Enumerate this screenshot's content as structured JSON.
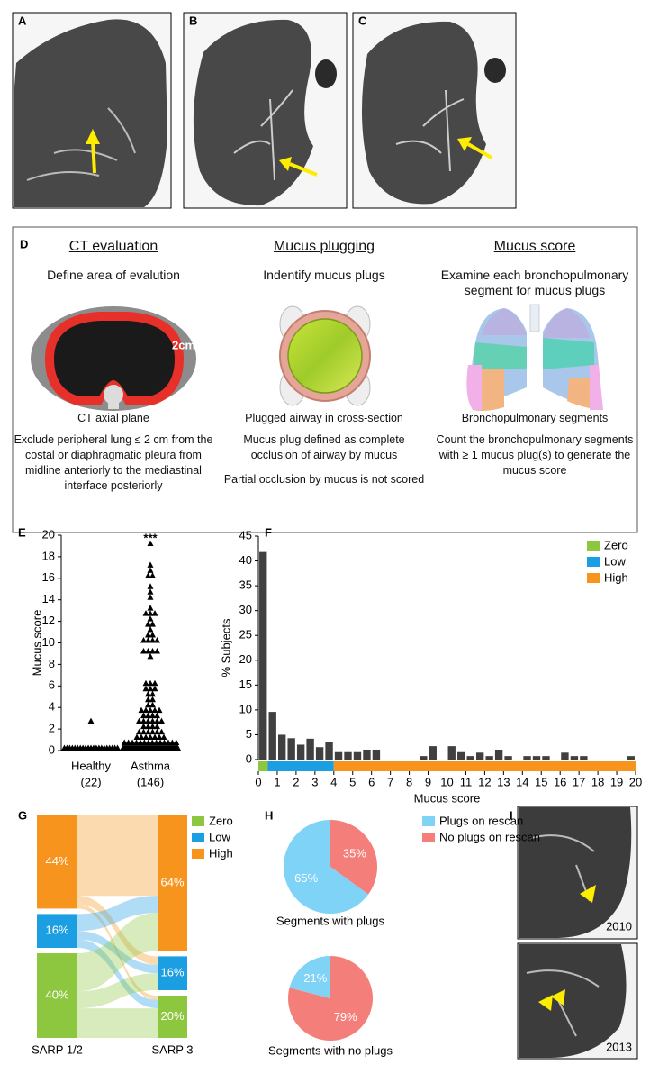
{
  "panel_labels": [
    "A",
    "B",
    "C",
    "D",
    "E",
    "F",
    "G",
    "H",
    "I"
  ],
  "evaluation": {
    "columns": [
      {
        "title": "CT evaluation",
        "subtitle": "Define area of evalution",
        "figure_text": "2cm",
        "caption": "CT axial plane",
        "notes": [
          "Exclude peripheral lung ≤ 2 cm from the costal or diaphragmatic pleura from midline anteriorly to the mediastinal interface posteriorly"
        ]
      },
      {
        "title": "Mucus plugging",
        "subtitle": "Indentify mucus plugs",
        "caption": "Plugged airway in cross-section",
        "notes": [
          "Mucus plug defined as complete occlusion of airway by mucus",
          "Partial occlusion by mucus is not scored"
        ]
      },
      {
        "title": "Mucus score",
        "subtitle": "Examine each bronchopulmonary segment for mucus plugs",
        "caption": "Bronchopulmonary segments",
        "notes": [
          "Count the bronchopulmonary segments with ≥ 1 mucus plug(s) to generate the mucus score"
        ]
      }
    ]
  },
  "follow_up_images": {
    "years": [
      "2010",
      "2013"
    ]
  },
  "chart_data": [
    {
      "type": "scatter",
      "ylabel": "Mucus score",
      "categories": [
        "Healthy",
        "Asthma"
      ],
      "group_sizes": [
        "(22)",
        "(146)"
      ],
      "marker": "triangle",
      "color": "#000000",
      "annotation": "***",
      "annotation_series": 1,
      "ylim": [
        0,
        20
      ],
      "yticks": [
        0,
        2,
        4,
        6,
        8,
        10,
        12,
        14,
        16,
        18,
        20
      ],
      "series": [
        {
          "values": [
            0,
            0,
            0,
            0,
            0,
            0,
            0,
            0,
            0,
            0,
            0,
            0,
            0,
            0,
            0,
            0,
            0,
            0,
            0,
            0,
            0,
            2.5
          ]
        },
        {
          "values": [
            0,
            0,
            0,
            0,
            0,
            0,
            0,
            0,
            0,
            0,
            0,
            0,
            0,
            0,
            0,
            0,
            0,
            0,
            0,
            0,
            0,
            0,
            0,
            0,
            0,
            0,
            0,
            0,
            0,
            0,
            0,
            0,
            0,
            0,
            0,
            0,
            0,
            0,
            0,
            0,
            0,
            0,
            0,
            0,
            0,
            0,
            0,
            0,
            0,
            0,
            0,
            0,
            0,
            0,
            0,
            0,
            0,
            0,
            0,
            0,
            0,
            0.5,
            0.5,
            0.5,
            0.5,
            0.5,
            0.5,
            0.5,
            0.5,
            0.5,
            0.5,
            0.5,
            0.5,
            0.5,
            0.5,
            1,
            1,
            1,
            1,
            1,
            1,
            1,
            1.5,
            1.5,
            1.5,
            1.5,
            1.5,
            1.5,
            2,
            2,
            2,
            2,
            2.5,
            2.5,
            2.5,
            2.5,
            2.5,
            2.5,
            3,
            3,
            3,
            3,
            3.5,
            3.5,
            3.5,
            3.5,
            3.5,
            4,
            4,
            4.5,
            4.5,
            5,
            5,
            5.5,
            5.5,
            5.5,
            6,
            6,
            6,
            8.5,
            9,
            9,
            9,
            9,
            10,
            10,
            10,
            10,
            10.5,
            10.5,
            11,
            11.5,
            11.5,
            12,
            12.5,
            12.5,
            12.5,
            13,
            14,
            14.5,
            15,
            16,
            16,
            16.5,
            17,
            19
          ]
        }
      ]
    },
    {
      "type": "histogram",
      "ylabel": "% Subjects",
      "xlabel": "Mucus score",
      "color": "#404040",
      "bins": [
        0,
        0.5,
        1,
        1.5,
        2,
        2.5,
        3,
        3.5,
        4,
        4.5,
        5,
        5.5,
        6,
        6.5,
        7,
        7.5,
        8,
        8.5,
        9,
        9.5,
        10,
        10.5,
        11,
        11.5,
        12,
        12.5,
        13,
        13.5,
        14,
        14.5,
        15,
        15.5,
        16,
        16.5,
        17,
        17.5,
        18,
        18.5,
        19,
        19.5,
        20
      ],
      "values": [
        41.8,
        9.6,
        5,
        4.3,
        3,
        4.2,
        2.5,
        3.6,
        1.5,
        1.5,
        1.5,
        2,
        2,
        0,
        0,
        0,
        0,
        0.7,
        2.7,
        0,
        2.7,
        1.5,
        0.7,
        1.4,
        0.7,
        2,
        0.7,
        0,
        0.7,
        0.7,
        0.7,
        0,
        1.4,
        0.7,
        0.7,
        0,
        0,
        0,
        0,
        0.7
      ],
      "xlim": [
        0,
        20
      ],
      "xticks": [
        0,
        1,
        2,
        3,
        4,
        5,
        6,
        7,
        8,
        9,
        10,
        11,
        12,
        13,
        14,
        15,
        16,
        17,
        18,
        19,
        20
      ],
      "ylim": [
        0,
        45
      ],
      "yticks": [
        0,
        5,
        10,
        15,
        20,
        25,
        30,
        35,
        40,
        45
      ],
      "bands": [
        {
          "name": "Zero",
          "color": "#8dc63f",
          "range": [
            0,
            0.5
          ]
        },
        {
          "name": "Low",
          "color": "#1c9ee2",
          "range": [
            0.5,
            4
          ]
        },
        {
          "name": "High",
          "color": "#f7941d",
          "range": [
            4,
            20
          ]
        }
      ],
      "legend": "upper right"
    },
    {
      "type": "sankey",
      "stages": [
        "SARP 1/2",
        "SARP 3"
      ],
      "series": [
        {
          "name": "Zero",
          "color": "#8dc63f",
          "values": [
            40,
            20
          ],
          "value_labels": [
            "40%",
            "20%"
          ]
        },
        {
          "name": "Low",
          "color": "#1c9ee2",
          "values": [
            16,
            16
          ],
          "value_labels": [
            "16%",
            "16%"
          ]
        },
        {
          "name": "High",
          "color": "#f7941d",
          "values": [
            44,
            64
          ],
          "value_labels": [
            "44%",
            "64%"
          ]
        }
      ],
      "flows": [
        {
          "from": 2,
          "to": 2,
          "value": 38
        },
        {
          "from": 2,
          "to": 1,
          "value": 4
        },
        {
          "from": 2,
          "to": 0,
          "value": 2
        },
        {
          "from": 1,
          "to": 2,
          "value": 8
        },
        {
          "from": 1,
          "to": 1,
          "value": 4
        },
        {
          "from": 1,
          "to": 0,
          "value": 4
        },
        {
          "from": 0,
          "to": 2,
          "value": 18
        },
        {
          "from": 0,
          "to": 1,
          "value": 8
        },
        {
          "from": 0,
          "to": 0,
          "value": 14
        }
      ]
    },
    {
      "type": "pie",
      "title": "Segments with plugs",
      "categories": [
        "Plugs on rescan",
        "No plugs on rescan"
      ],
      "values": [
        65,
        35
      ],
      "value_labels": [
        "65%",
        "35%"
      ],
      "colors": [
        "#7fd3f7",
        "#f47f7a"
      ],
      "legend": "right"
    },
    {
      "type": "pie",
      "title": "Segments with no plugs",
      "values": [
        21,
        79
      ],
      "value_labels": [
        "21%",
        "79%"
      ],
      "colors": [
        "#7fd3f7",
        "#f47f7a"
      ]
    }
  ]
}
